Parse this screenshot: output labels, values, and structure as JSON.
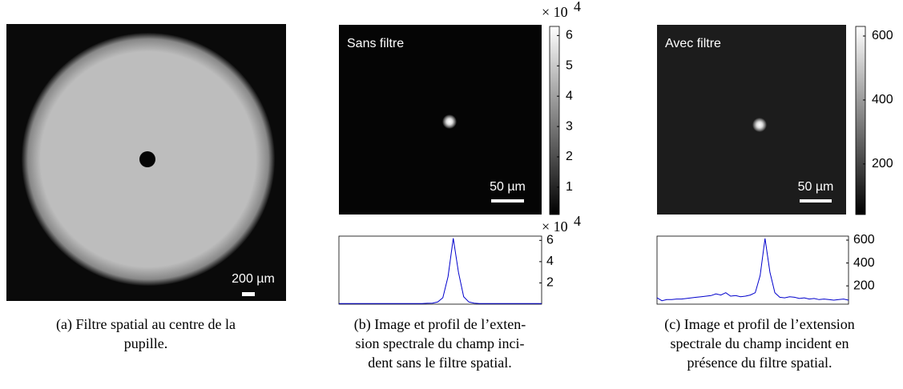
{
  "panels": [
    {
      "scale_bar": "200 µm",
      "caption": [
        "(a) Filtre spatial au centre de la",
        "pupille."
      ]
    },
    {
      "image_label": "Sans filtre",
      "scale_bar": "50 µm",
      "colorbar": {
        "exponent": {
          "base": "× 10",
          "power": "4"
        },
        "clim": [
          0.1,
          6.3
        ],
        "ticks": [
          1,
          2,
          3,
          4,
          5,
          6
        ]
      },
      "profile": {
        "exponent": {
          "base": "× 10",
          "power": "4"
        },
        "color": "#0000cc",
        "ylim": [
          0,
          6.4
        ],
        "yticks": [
          2,
          4,
          6
        ],
        "values": [
          0.05,
          0.05,
          0.05,
          0.05,
          0.05,
          0.05,
          0.05,
          0.05,
          0.05,
          0.05,
          0.05,
          0.05,
          0.05,
          0.05,
          0.05,
          0.05,
          0.05,
          0.08,
          0.1,
          0.2,
          0.6,
          2.6,
          6.2,
          3.0,
          0.7,
          0.2,
          0.1,
          0.05,
          0.05,
          0.05,
          0.05,
          0.05,
          0.05,
          0.05,
          0.05,
          0.05,
          0.05,
          0.05,
          0.05,
          0.05
        ]
      },
      "caption": [
        "(b) Image et profil de l’exten-",
        "sion spectrale du champ inci-",
        "dent sans le filtre spatial."
      ]
    },
    {
      "image_label": "Avec filtre",
      "scale_bar": "50 µm",
      "colorbar": {
        "clim": [
          42,
          630
        ],
        "ticks": [
          200,
          400,
          600
        ]
      },
      "profile": {
        "color": "#0000cc",
        "ylim": [
          40,
          635
        ],
        "yticks": [
          200,
          400,
          600
        ],
        "values": [
          95,
          70,
          80,
          80,
          85,
          85,
          90,
          95,
          100,
          105,
          110,
          115,
          130,
          120,
          140,
          110,
          115,
          105,
          110,
          120,
          140,
          290,
          615,
          320,
          140,
          100,
          95,
          105,
          100,
          90,
          95,
          85,
          90,
          80,
          85,
          80,
          75,
          80,
          85,
          75
        ]
      },
      "caption": [
        "(c) Image et profil de l’extension",
        "spectrale du champ incident en",
        "présence du filtre spatial."
      ]
    }
  ]
}
